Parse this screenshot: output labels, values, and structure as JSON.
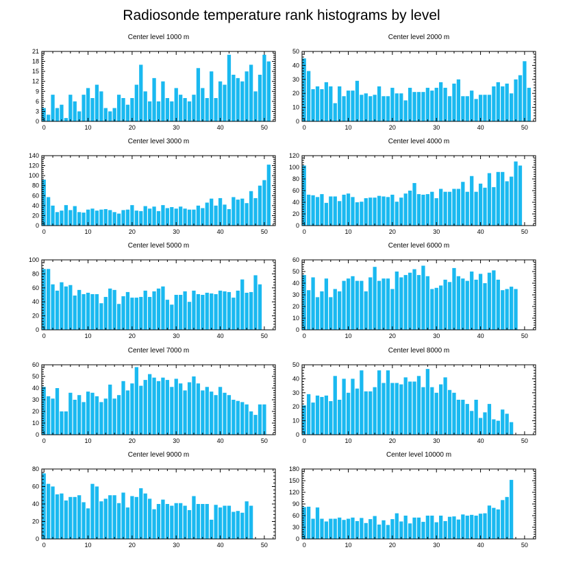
{
  "chart_data": {
    "type": "bar",
    "title": "Radiosonde temperature rank histograms by level",
    "bar_color": "#1ab9f0",
    "x_ticks": [
      0,
      10,
      20,
      30,
      40,
      50
    ],
    "x_range": [
      -0.5,
      52.5
    ],
    "panels": [
      {
        "title": "Center level 1000 m",
        "ylim": [
          0,
          21
        ],
        "y_ticks": [
          0,
          3,
          6,
          9,
          12,
          15,
          18,
          21
        ],
        "values": [
          4,
          2,
          8,
          4,
          5,
          1,
          8,
          6,
          3,
          8,
          10,
          7,
          11,
          9,
          4,
          3,
          4,
          8,
          7,
          5,
          7,
          11,
          17,
          9,
          6,
          13,
          6,
          12,
          7,
          6,
          10,
          8,
          7,
          6,
          8,
          16,
          10,
          7,
          15,
          7,
          12,
          11,
          20,
          14,
          13,
          12,
          15,
          17,
          9,
          14,
          20,
          18
        ]
      },
      {
        "title": "Center level 2000 m",
        "ylim": [
          0,
          50
        ],
        "y_ticks": [
          0,
          10,
          20,
          30,
          40,
          50
        ],
        "values": [
          45,
          36,
          23,
          25,
          23,
          28,
          25,
          13,
          25,
          18,
          22,
          22,
          29,
          19,
          20,
          18,
          19,
          25,
          18,
          18,
          24,
          20,
          20,
          15,
          24,
          21,
          21,
          21,
          24,
          22,
          24,
          28,
          24,
          18,
          27,
          30,
          18,
          18,
          22,
          16,
          19,
          19,
          19,
          25,
          28,
          25,
          27,
          20,
          30,
          33,
          43,
          24
        ]
      },
      {
        "title": "Center level 3000 m",
        "ylim": [
          0,
          140
        ],
        "y_ticks": [
          0,
          20,
          40,
          60,
          80,
          100,
          120,
          140
        ],
        "values": [
          92,
          57,
          40,
          27,
          30,
          41,
          31,
          39,
          27,
          26,
          32,
          34,
          30,
          32,
          33,
          31,
          27,
          24,
          31,
          32,
          41,
          30,
          29,
          39,
          34,
          38,
          29,
          41,
          35,
          37,
          34,
          38,
          34,
          32,
          32,
          40,
          35,
          46,
          54,
          40,
          55,
          42,
          33,
          57,
          52,
          54,
          45,
          69,
          55,
          80,
          91,
          122
        ]
      },
      {
        "title": "Center level 4000 m",
        "ylim": [
          0,
          120
        ],
        "y_ticks": [
          0,
          20,
          40,
          60,
          80,
          100,
          120
        ],
        "values": [
          103,
          53,
          52,
          49,
          54,
          39,
          50,
          50,
          42,
          53,
          55,
          49,
          40,
          41,
          47,
          48,
          48,
          51,
          50,
          49,
          53,
          41,
          48,
          55,
          60,
          73,
          54,
          53,
          54,
          58,
          47,
          63,
          58,
          58,
          63,
          63,
          75,
          58,
          85,
          58,
          72,
          65,
          90,
          66,
          92,
          92,
          76,
          84,
          110,
          103
        ]
      },
      {
        "title": "Center level 5000 m",
        "ylim": [
          0,
          100
        ],
        "y_ticks": [
          0,
          20,
          40,
          60,
          80,
          100
        ],
        "values": [
          87,
          87,
          65,
          56,
          68,
          62,
          64,
          49,
          57,
          51,
          53,
          51,
          51,
          38,
          47,
          59,
          57,
          37,
          48,
          54,
          46,
          46,
          47,
          56,
          47,
          55,
          59,
          62,
          43,
          36,
          50,
          50,
          55,
          40,
          56,
          51,
          50,
          53,
          52,
          51,
          56,
          55,
          54,
          46,
          56,
          72,
          53,
          54,
          78,
          65
        ]
      },
      {
        "title": "Center level 6000 m",
        "ylim": [
          0,
          60
        ],
        "y_ticks": [
          0,
          10,
          20,
          30,
          40,
          50,
          60
        ],
        "values": [
          47,
          34,
          45,
          28,
          33,
          44,
          28,
          35,
          33,
          42,
          44,
          46,
          42,
          42,
          33,
          45,
          54,
          42,
          44,
          44,
          35,
          50,
          45,
          47,
          49,
          52,
          47,
          55,
          46,
          35,
          36,
          38,
          43,
          41,
          53,
          46,
          44,
          42,
          50,
          43,
          48,
          40,
          49,
          51,
          43,
          34,
          35,
          37,
          35
        ]
      },
      {
        "title": "Center level 7000 m",
        "ylim": [
          0,
          60
        ],
        "y_ticks": [
          0,
          10,
          20,
          30,
          40,
          50,
          60
        ],
        "values": [
          41,
          33,
          31,
          40,
          20,
          20,
          36,
          30,
          34,
          28,
          37,
          36,
          33,
          28,
          31,
          43,
          31,
          34,
          46,
          38,
          44,
          58,
          42,
          47,
          52,
          49,
          46,
          49,
          47,
          41,
          48,
          44,
          38,
          45,
          50,
          44,
          38,
          41,
          37,
          34,
          41,
          36,
          34,
          30,
          29,
          28,
          26,
          20,
          17,
          26,
          26
        ]
      },
      {
        "title": "Center level 8000 m",
        "ylim": [
          0,
          50
        ],
        "y_ticks": [
          0,
          10,
          20,
          30,
          40,
          50
        ],
        "values": [
          21,
          29,
          23,
          28,
          27,
          28,
          24,
          42,
          25,
          40,
          30,
          40,
          33,
          46,
          31,
          31,
          34,
          46,
          37,
          46,
          37,
          37,
          36,
          41,
          38,
          38,
          42,
          34,
          47,
          34,
          30,
          36,
          41,
          32,
          30,
          25,
          25,
          22,
          17,
          25,
          12,
          16,
          22,
          11,
          10,
          18,
          15,
          9
        ]
      },
      {
        "title": "Center level 9000 m",
        "ylim": [
          0,
          80
        ],
        "y_ticks": [
          0,
          20,
          40,
          60,
          80
        ],
        "values": [
          75,
          63,
          60,
          51,
          52,
          44,
          48,
          48,
          50,
          42,
          35,
          63,
          60,
          43,
          46,
          50,
          50,
          41,
          53,
          36,
          49,
          48,
          58,
          52,
          46,
          34,
          40,
          45,
          40,
          38,
          41,
          41,
          38,
          33,
          49,
          40,
          40,
          40,
          22,
          39,
          36,
          38,
          38,
          31,
          32,
          30,
          43,
          38
        ]
      },
      {
        "title": "Center level 10000 m",
        "ylim": [
          0,
          180
        ],
        "y_ticks": [
          0,
          30,
          60,
          90,
          120,
          150,
          180
        ],
        "values": [
          82,
          83,
          52,
          81,
          52,
          45,
          52,
          52,
          55,
          49,
          52,
          55,
          46,
          54,
          41,
          51,
          59,
          37,
          48,
          36,
          51,
          66,
          45,
          60,
          40,
          55,
          55,
          44,
          60,
          60,
          43,
          60,
          46,
          57,
          58,
          50,
          63,
          60,
          62,
          60,
          65,
          66,
          86,
          80,
          76,
          100,
          108,
          152
        ]
      }
    ]
  }
}
